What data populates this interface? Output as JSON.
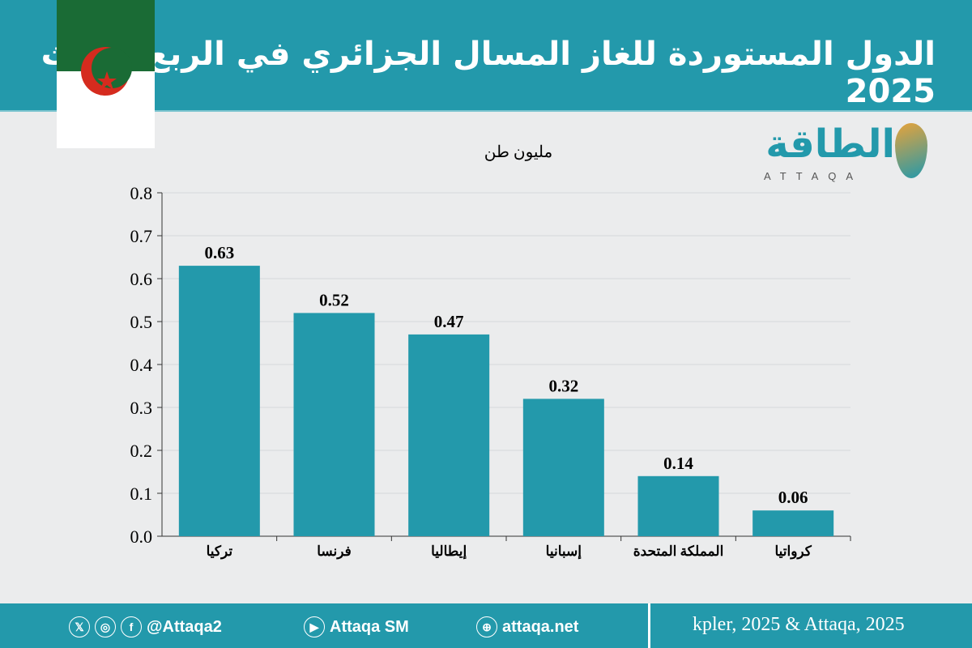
{
  "header": {
    "title": "الدول المستوردة للغاز المسال الجزائري في الربع الثالث 2025"
  },
  "logo": {
    "arabic": "الطاقة",
    "latin": "ATTAQA"
  },
  "footer": {
    "handle": "@Attaqa2",
    "youtube": "Attaqa SM",
    "website": "attaqa.net",
    "source": "kpler, 2025 & Attaqa, 2025",
    "icons": [
      "x-icon",
      "instagram-icon",
      "facebook-icon",
      "youtube-icon",
      "globe-icon"
    ]
  },
  "colors": {
    "bar": "#2399ab",
    "header": "#2399ab",
    "background": "#ebeced"
  },
  "chart_data": {
    "type": "bar",
    "title": "الدول المستوردة للغاز المسال الجزائري في الربع الثالث 2025",
    "ylabel": "مليون طن",
    "categories": [
      "تركيا",
      "فرنسا",
      "إيطاليا",
      "إسبانيا",
      "المملكة المتحدة",
      "كرواتيا"
    ],
    "values": [
      0.63,
      0.52,
      0.47,
      0.32,
      0.14,
      0.06
    ],
    "value_labels": [
      "0.63",
      "0.52",
      "0.47",
      "0.32",
      "0.14",
      "0.06"
    ],
    "ylim": [
      0,
      0.8
    ],
    "yticks": [
      "0.0",
      "0.1",
      "0.2",
      "0.3",
      "0.4",
      "0.5",
      "0.6",
      "0.7",
      "0.8"
    ],
    "grid": true
  }
}
